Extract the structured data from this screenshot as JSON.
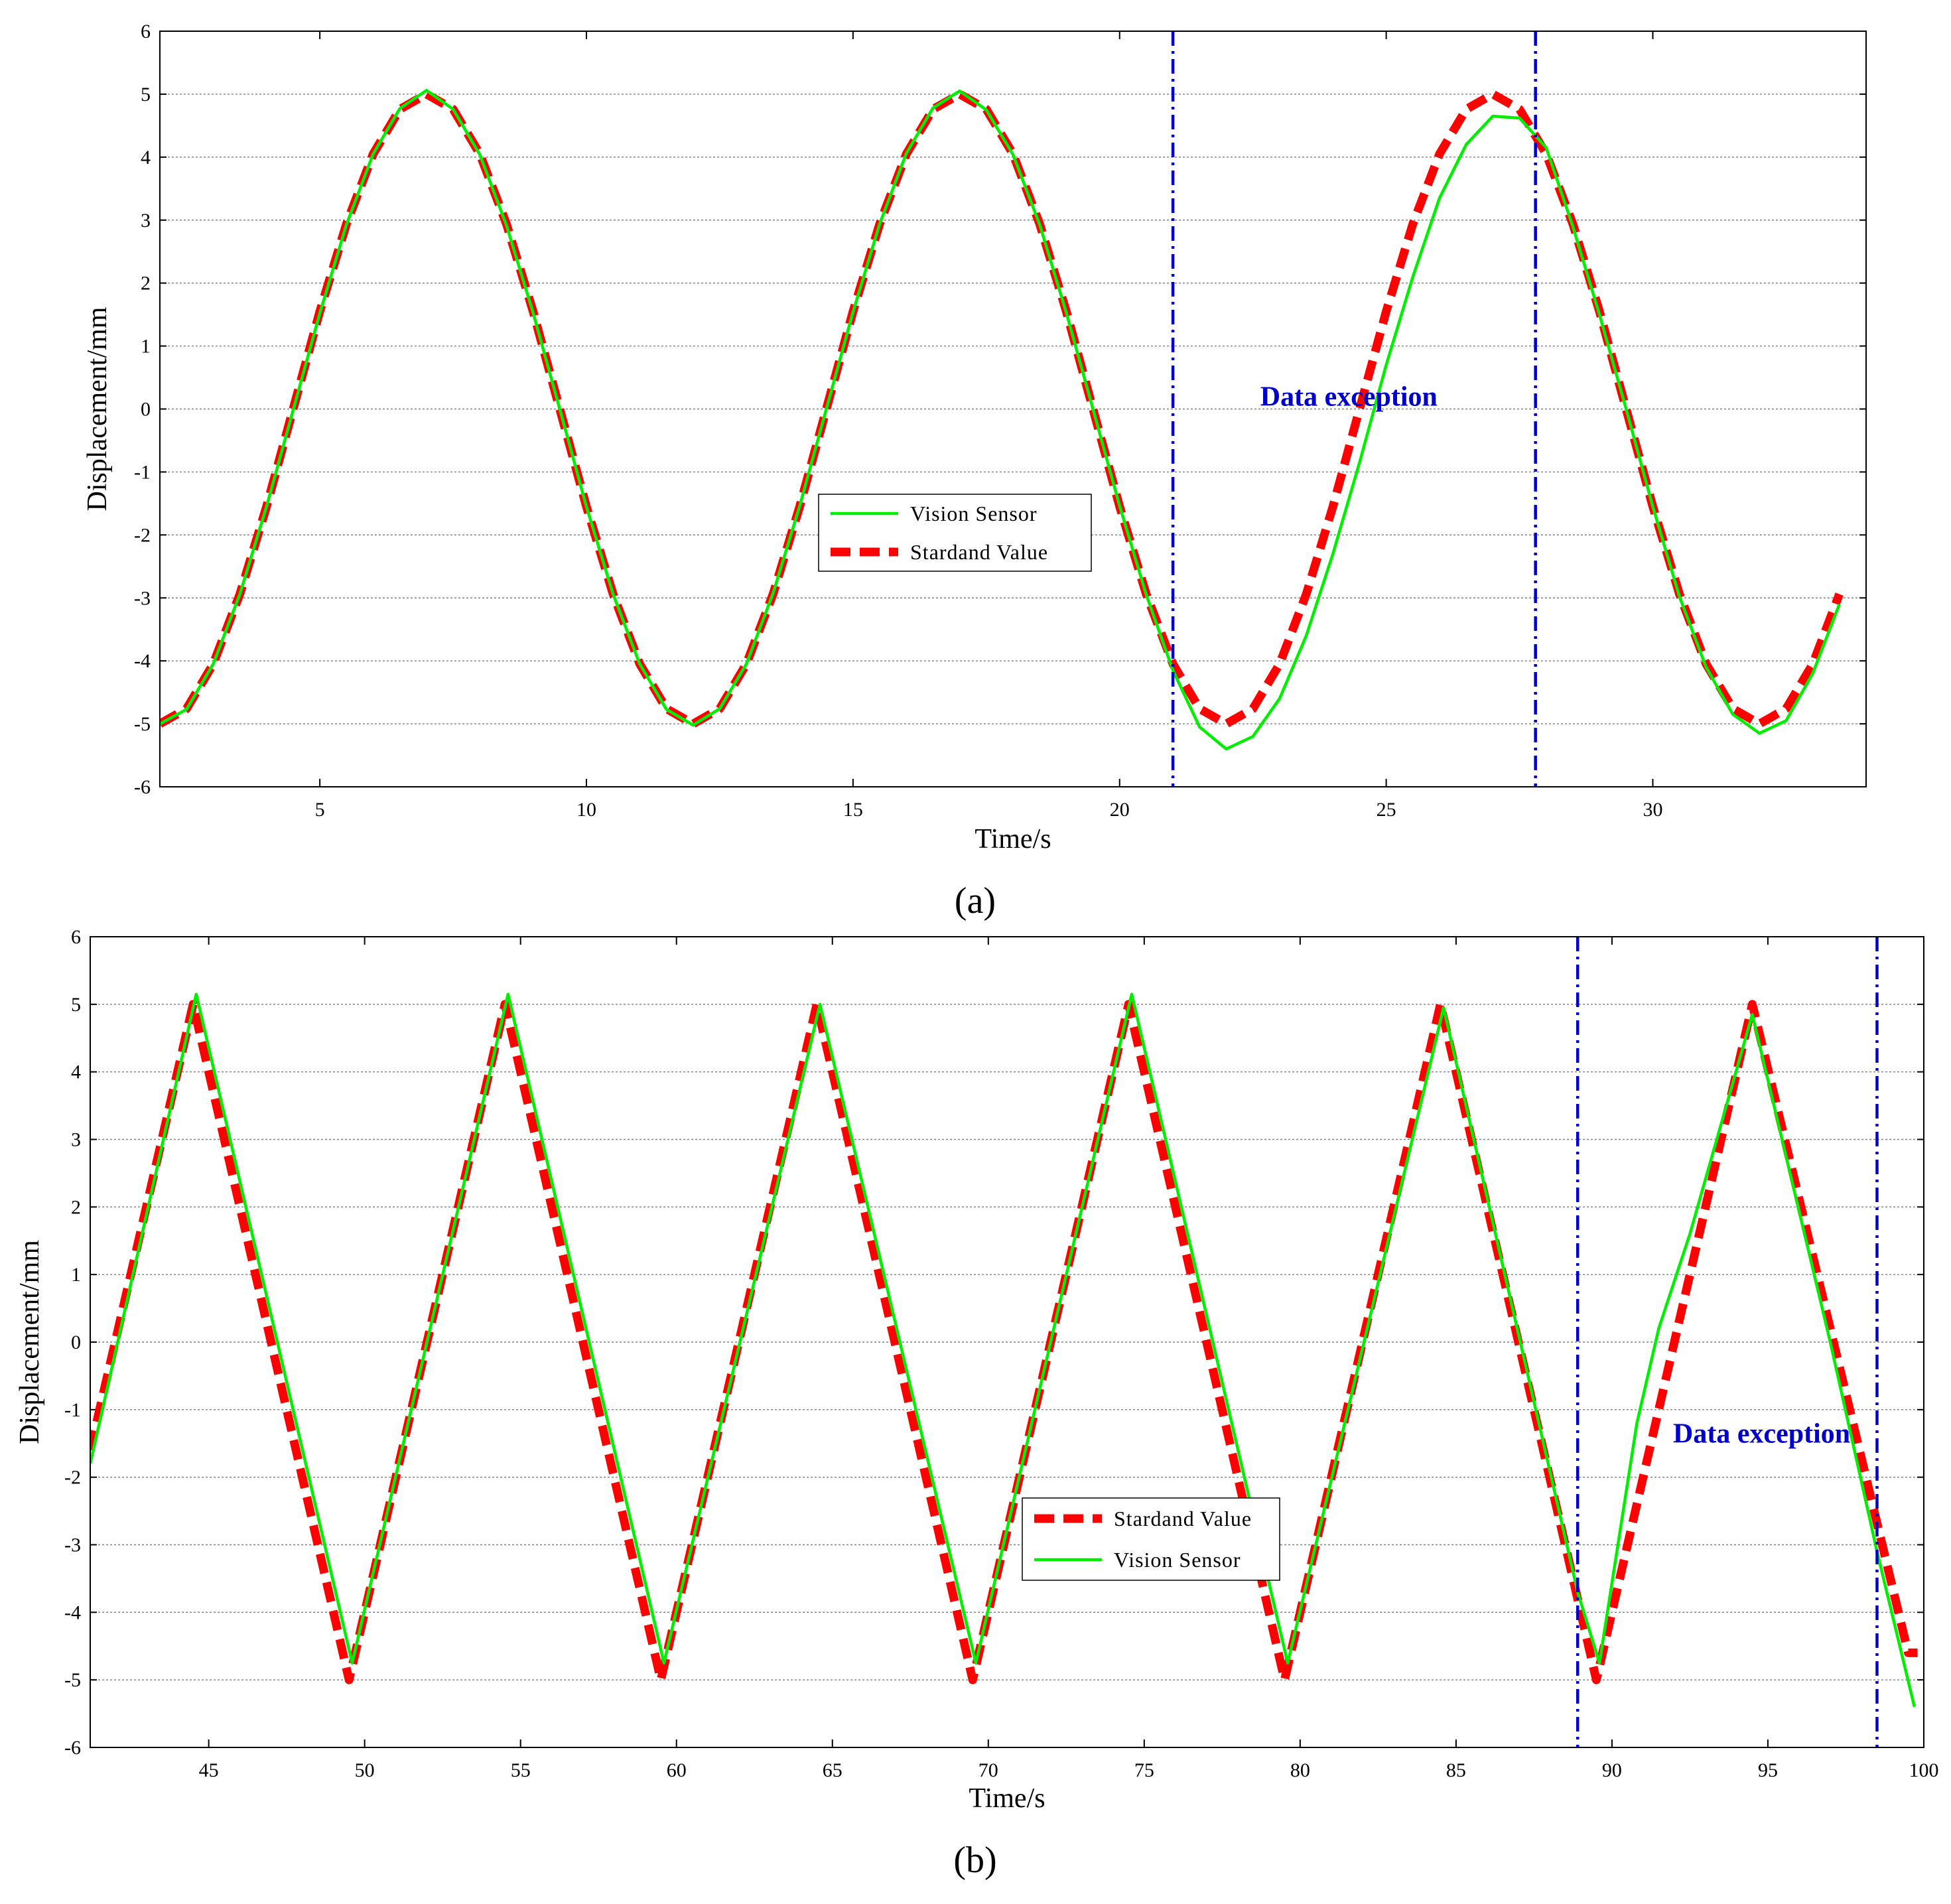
{
  "chart_data": [
    {
      "type": "line",
      "panel_label": "(a)",
      "xlabel": "Time/s",
      "ylabel": "Displacement/mm",
      "xlim": [
        2,
        34
      ],
      "ylim": [
        -6,
        6
      ],
      "xticks": [
        5,
        10,
        15,
        20,
        25,
        30
      ],
      "yticks": [
        -6,
        -5,
        -4,
        -3,
        -2,
        -1,
        0,
        1,
        2,
        3,
        4,
        5,
        6
      ],
      "grid": "horizontal",
      "legend_position": "center",
      "legend": [
        "Vision Sensor",
        "Stardand Value"
      ],
      "annotation": "Data exception",
      "annotation_x": 24.3,
      "annotation_y": 0.2,
      "vlines": [
        21,
        27.8
      ],
      "series": [
        {
          "name": "Vision Sensor",
          "color": "#00ee00",
          "style": "solid",
          "x": [
            2,
            2.5,
            3,
            3.5,
            4,
            4.5,
            5,
            5.5,
            6,
            6.5,
            7,
            7.5,
            8,
            8.5,
            9,
            9.5,
            10,
            10.5,
            11,
            11.5,
            12,
            12.5,
            13,
            13.5,
            14,
            14.5,
            15,
            15.5,
            16,
            16.5,
            17,
            17.5,
            18,
            18.5,
            19,
            19.5,
            20,
            20.5,
            21,
            21.5,
            22,
            22.5,
            23,
            23.5,
            24,
            24.5,
            25,
            25.5,
            26,
            26.5,
            27,
            27.5,
            28,
            28.5,
            29,
            29.5,
            30,
            30.5,
            31,
            31.5,
            32,
            32.5,
            33,
            33.5
          ],
          "y": [
            -5.0,
            -4.77,
            -4.05,
            -2.94,
            -1.55,
            -0.02,
            1.52,
            2.93,
            4.05,
            4.77,
            5.06,
            4.76,
            4.04,
            2.92,
            1.53,
            0.0,
            -1.55,
            -2.94,
            -4.05,
            -4.77,
            -5.02,
            -4.76,
            -4.05,
            -2.93,
            -1.54,
            0.0,
            1.54,
            2.94,
            4.06,
            4.78,
            5.05,
            4.75,
            4.04,
            2.93,
            1.53,
            0.0,
            -1.54,
            -2.95,
            -4.15,
            -5.05,
            -5.4,
            -5.2,
            -4.6,
            -3.6,
            -2.3,
            -0.85,
            0.7,
            2.1,
            3.35,
            4.2,
            4.65,
            4.62,
            4.15,
            2.9,
            1.5,
            0.0,
            -1.55,
            -2.98,
            -4.1,
            -4.85,
            -5.15,
            -4.95,
            -4.2,
            -3.1
          ]
        },
        {
          "name": "Stardand Value",
          "color": "#ff0000",
          "style": "dashed",
          "x": [
            2,
            2.5,
            3,
            3.5,
            4,
            4.5,
            5,
            5.5,
            6,
            6.5,
            7,
            7.5,
            8,
            8.5,
            9,
            9.5,
            10,
            10.5,
            11,
            11.5,
            12,
            12.5,
            13,
            13.5,
            14,
            14.5,
            15,
            15.5,
            16,
            16.5,
            17,
            17.5,
            18,
            18.5,
            19,
            19.5,
            20,
            20.5,
            21,
            21.5,
            22,
            22.5,
            23,
            23.5,
            24,
            24.5,
            25,
            25.5,
            26,
            26.5,
            27,
            27.5,
            28,
            28.5,
            29,
            29.5,
            30,
            30.5,
            31,
            31.5,
            32,
            32.5,
            33,
            33.5
          ],
          "y": [
            -5.0,
            -4.76,
            -4.05,
            -2.94,
            -1.55,
            0.0,
            1.55,
            2.94,
            4.05,
            4.76,
            5.0,
            4.76,
            4.05,
            2.94,
            1.55,
            0.0,
            -1.55,
            -2.94,
            -4.05,
            -4.76,
            -5.0,
            -4.76,
            -4.05,
            -2.94,
            -1.55,
            0.0,
            1.55,
            2.94,
            4.05,
            4.76,
            5.0,
            4.76,
            4.05,
            2.94,
            1.55,
            0.0,
            -1.55,
            -2.94,
            -4.05,
            -4.76,
            -5.0,
            -4.76,
            -4.05,
            -2.94,
            -1.55,
            0.0,
            1.55,
            2.94,
            4.05,
            4.76,
            5.0,
            4.76,
            4.05,
            2.94,
            1.55,
            0.0,
            -1.55,
            -2.94,
            -4.05,
            -4.76,
            -5.0,
            -4.76,
            -4.05,
            -2.94
          ]
        }
      ]
    },
    {
      "type": "line",
      "panel_label": "(b)",
      "xlabel": "Time/s",
      "ylabel": "Displacement/mm",
      "xlim": [
        41.2,
        100
      ],
      "ylim": [
        -6,
        6
      ],
      "xticks": [
        45,
        50,
        55,
        60,
        65,
        70,
        75,
        80,
        85,
        90,
        95,
        100
      ],
      "yticks": [
        -6,
        -5,
        -4,
        -3,
        -2,
        -1,
        0,
        1,
        2,
        3,
        4,
        5,
        6
      ],
      "grid": "horizontal",
      "legend_position": "center",
      "legend": [
        "Stardand Value",
        "Vision Sensor"
      ],
      "annotation": "Data exception",
      "annotation_x": 94.8,
      "annotation_y": -1.35,
      "vlines": [
        88.9,
        98.5
      ],
      "series": [
        {
          "name": "Vision Sensor",
          "color": "#00ee00",
          "style": "solid",
          "x": [
            41.2,
            44.6,
            49.6,
            54.6,
            59.6,
            64.6,
            69.6,
            74.6,
            79.6,
            84.6,
            88.9,
            89.6,
            90.8,
            91.5,
            92.5,
            94.5,
            97.0,
            98.5,
            99.7
          ],
          "y": [
            -1.8,
            5.15,
            -4.75,
            5.15,
            -4.75,
            5.0,
            -4.75,
            5.15,
            -4.75,
            4.95,
            -3.7,
            -4.75,
            -1.2,
            0.2,
            1.6,
            4.85,
            0.0,
            -3.1,
            -5.4
          ]
        },
        {
          "name": "Stardand Value",
          "color": "#ff0000",
          "style": "dashed",
          "x": [
            41.2,
            44.5,
            49.5,
            54.5,
            59.5,
            64.5,
            69.5,
            74.5,
            79.5,
            84.5,
            89.5,
            94.5,
            99.5,
            99.8
          ],
          "y": [
            -1.6,
            5.0,
            -5.0,
            5.0,
            -5.0,
            5.0,
            -5.0,
            5.0,
            -5.0,
            5.0,
            -5.0,
            5.0,
            -4.6,
            -4.6
          ]
        }
      ]
    }
  ]
}
